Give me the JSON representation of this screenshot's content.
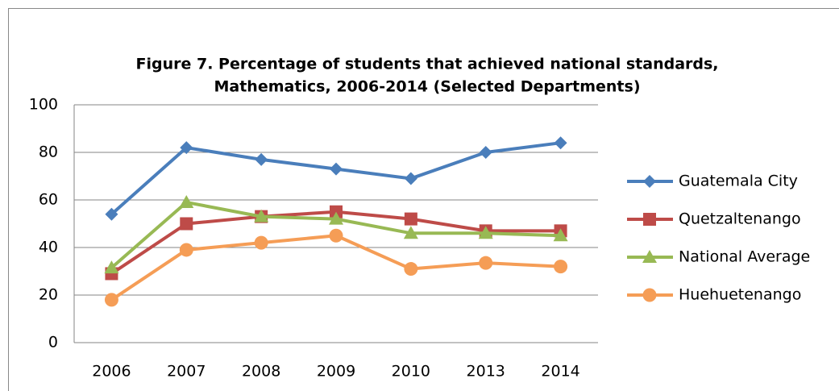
{
  "chart_data": {
    "type": "line",
    "title": [
      "Figure 7. Percentage of students that achieved national standards,",
      "Mathematics, 2006-2014 (Selected Departments)"
    ],
    "categories": [
      "2006",
      "2007",
      "2008",
      "2009",
      "2010",
      "2013",
      "2014"
    ],
    "series": [
      {
        "name": "Guatemala City",
        "color": "#4a7ebb",
        "marker": "diamond",
        "values": [
          54,
          82,
          77,
          73,
          69,
          80,
          84
        ]
      },
      {
        "name": "Quetzaltenango",
        "color": "#be4b48",
        "marker": "square",
        "values": [
          29,
          50,
          53,
          55,
          52,
          47,
          47
        ]
      },
      {
        "name": "National Average",
        "color": "#98b954",
        "marker": "triangle",
        "values": [
          31.5,
          59,
          53,
          52,
          46,
          46,
          45
        ]
      },
      {
        "name": "Huehuetenango",
        "color": "#f59d56",
        "marker": "circle",
        "values": [
          18,
          39,
          42,
          45,
          31,
          33.5,
          32
        ]
      }
    ],
    "ylim": [
      0,
      100
    ],
    "yticks": [
      0,
      20,
      40,
      60,
      80,
      100
    ],
    "grid": true,
    "legend": "right"
  }
}
